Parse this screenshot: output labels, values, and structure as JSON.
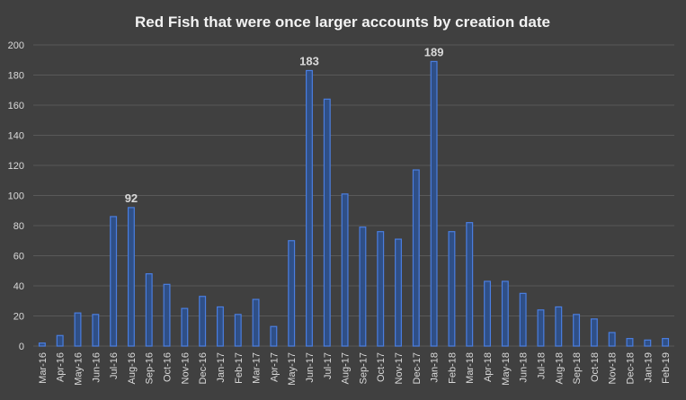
{
  "chart_data": {
    "type": "bar",
    "title": "Red Fish that were once larger accounts by creation date",
    "xlabel": "",
    "ylabel": "",
    "ylim": [
      0,
      200
    ],
    "yticks": [
      0,
      20,
      40,
      60,
      80,
      100,
      120,
      140,
      160,
      180,
      200
    ],
    "grid": true,
    "legend": "none",
    "colors": {
      "background": "#404040",
      "bar_fill": "#2f4f86",
      "bar_edge": "#4a7ee0",
      "grid": "#595959",
      "text": "#d9d9d9"
    },
    "categories": [
      "Mar-16",
      "Apr-16",
      "May-16",
      "Jun-16",
      "Jul-16",
      "Aug-16",
      "Sep-16",
      "Oct-16",
      "Nov-16",
      "Dec-16",
      "Jan-17",
      "Feb-17",
      "Mar-17",
      "Apr-17",
      "May-17",
      "Jun-17",
      "Jul-17",
      "Aug-17",
      "Sep-17",
      "Oct-17",
      "Nov-17",
      "Dec-17",
      "Jan-18",
      "Feb-18",
      "Mar-18",
      "Apr-18",
      "May-18",
      "Jun-18",
      "Jul-18",
      "Aug-18",
      "Sep-18",
      "Oct-18",
      "Nov-18",
      "Dec-18",
      "Jan-19",
      "Feb-19"
    ],
    "values": [
      2,
      7,
      22,
      21,
      86,
      92,
      48,
      41,
      25,
      33,
      26,
      21,
      31,
      13,
      70,
      183,
      164,
      101,
      79,
      76,
      71,
      117,
      189,
      76,
      82,
      43,
      43,
      35,
      24,
      26,
      21,
      18,
      9,
      5,
      4,
      5
    ],
    "annotations": [
      {
        "category": "Aug-16",
        "label": "92"
      },
      {
        "category": "Jun-17",
        "label": "183"
      },
      {
        "category": "Jan-18",
        "label": "189"
      }
    ]
  }
}
